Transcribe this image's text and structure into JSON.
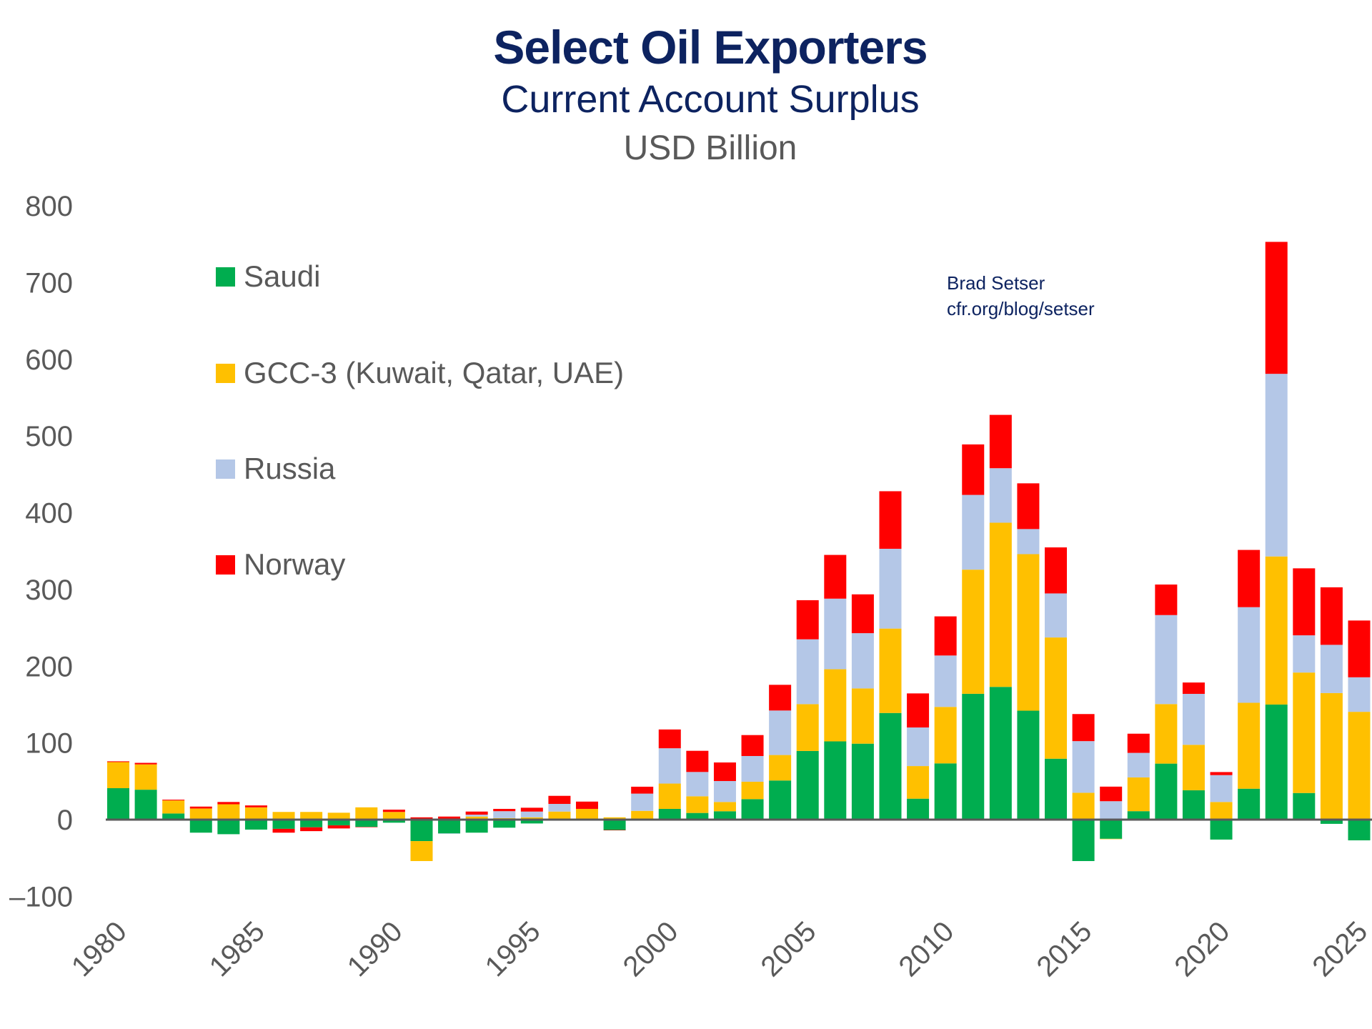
{
  "titles": {
    "title": "Select Oil Exporters",
    "subtitle": "Current Account Surplus",
    "unit": "USD Billion"
  },
  "credit": {
    "author": "Brad Setser",
    "url": "cfr.org/blog/setser"
  },
  "chart_data": {
    "type": "bar",
    "stacked": true,
    "title": "Select Oil Exporters",
    "subtitle": "Current Account Surplus",
    "ylabel": "USD Billion",
    "xlabel": "",
    "ylim": [
      -100,
      800
    ],
    "yticks": [
      800,
      700,
      600,
      500,
      400,
      300,
      200,
      100,
      0,
      -100
    ],
    "xtick_labels": [
      "1980",
      "1985",
      "1990",
      "1995",
      "2000",
      "2005",
      "2010",
      "2015",
      "2020",
      "2025"
    ],
    "grid": false,
    "legend_position": "top-left",
    "categories": [
      1980,
      1981,
      1982,
      1983,
      1984,
      1985,
      1986,
      1987,
      1988,
      1989,
      1990,
      1991,
      1992,
      1993,
      1994,
      1995,
      1996,
      1997,
      1998,
      1999,
      2000,
      2001,
      2002,
      2003,
      2004,
      2005,
      2006,
      2007,
      2008,
      2009,
      2010,
      2011,
      2012,
      2013,
      2014,
      2015,
      2016,
      2017,
      2018,
      2019,
      2020,
      2021,
      2022,
      2023,
      2024,
      2025
    ],
    "series": [
      {
        "name": "Saudi",
        "color": "#00ad4f",
        "values": [
          41,
          39,
          8,
          -17,
          -19,
          -13,
          -12,
          -10,
          -7.5,
          -9.5,
          -4,
          -28,
          -18,
          -17,
          -10.5,
          -5,
          0.5,
          0.5,
          -13.5,
          0.4,
          14,
          8.7,
          10.9,
          26.7,
          51,
          89.5,
          102,
          99,
          139,
          27.3,
          73.3,
          164,
          173,
          142,
          79.4,
          -54,
          -25,
          11,
          73,
          38.3,
          -26,
          40.3,
          150,
          34.7,
          -5.5,
          -27
        ]
      },
      {
        "name": "GCC-3 (Kuwait, Qatar, UAE)",
        "color": "#ffc000",
        "values": [
          34,
          33,
          17,
          14.5,
          20,
          16,
          10,
          10,
          9,
          16,
          10,
          -26,
          0,
          4,
          2,
          3,
          10,
          13.5,
          3,
          11,
          33,
          21.7,
          12.1,
          22.7,
          33.2,
          61,
          94,
          72,
          110,
          42.5,
          73.6,
          161.8,
          214,
          204,
          158,
          35,
          -0.5,
          44,
          77.6,
          59.2,
          23,
          112,
          193,
          157,
          165,
          140.5
        ]
      },
      {
        "name": "Russia",
        "color": "#b4c7e7",
        "values": [
          0,
          0,
          0,
          0,
          0,
          0,
          0,
          0,
          0,
          0,
          0,
          0,
          -0.5,
          2.5,
          9,
          7.5,
          10,
          0,
          0,
          22.5,
          46,
          31.7,
          27.3,
          33.5,
          58,
          84.5,
          92,
          72,
          104,
          50.3,
          67,
          97.4,
          71,
          32.7,
          57.4,
          67.3,
          24,
          32,
          116,
          66.4,
          35,
          124.6,
          238,
          48.5,
          62.8,
          45
        ]
      },
      {
        "name": "Norway",
        "color": "#ff0000",
        "values": [
          1,
          2,
          1,
          2.5,
          3,
          2.5,
          -5,
          -5,
          -4,
          -0.5,
          3,
          3,
          4,
          4,
          3,
          5,
          10.5,
          9.5,
          -0.5,
          9,
          24.5,
          27.6,
          24.2,
          27.3,
          33.5,
          51,
          57,
          50.6,
          75,
          44.4,
          51,
          65.8,
          69.5,
          59.6,
          60,
          35.3,
          19,
          25,
          39.8,
          14.8,
          4,
          74.6,
          172,
          87.3,
          75,
          74
        ]
      }
    ]
  }
}
